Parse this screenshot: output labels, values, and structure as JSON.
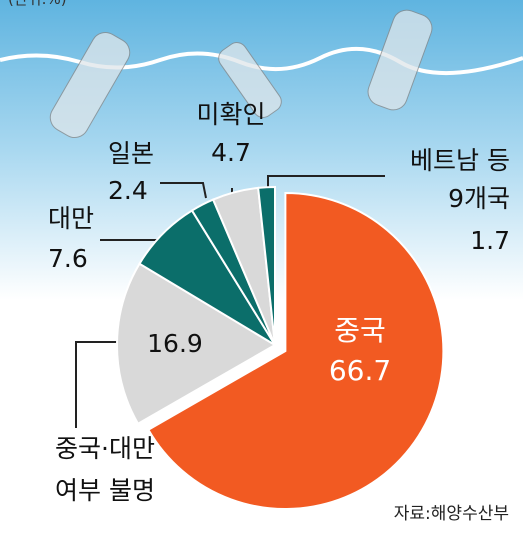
{
  "chart_data": {
    "type": "pie",
    "unit": "(단위:%)",
    "source": "자료:해양수산부",
    "categories": [
      "중국",
      "중국·대만\n여부 불명",
      "대만",
      "일본",
      "미확인",
      "베트남 등\n9개국"
    ],
    "values": [
      66.7,
      16.9,
      7.6,
      2.4,
      4.7,
      1.7
    ],
    "colors": [
      "#f25a22",
      "#d9d9d9",
      "#0b6e6a",
      "#0b6e6a",
      "#d9d9d9",
      "#0b6e6a"
    ]
  }
}
